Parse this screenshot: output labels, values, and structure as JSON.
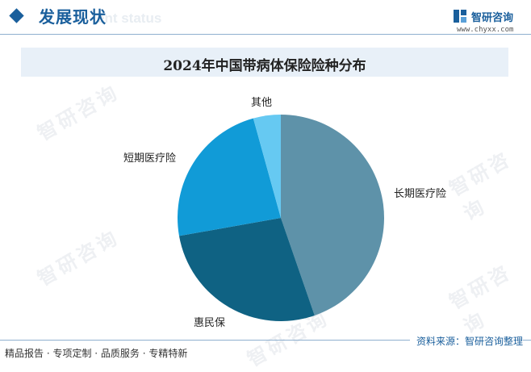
{
  "header": {
    "title": "发展现状",
    "subtitle_ghost": "ent status",
    "brand_name": "智研咨询",
    "brand_url": "www.chyxx.com"
  },
  "watermark_text": "智研咨询",
  "chart_data": {
    "type": "pie",
    "title": "2024年中国带病体保险险种分布",
    "start_angle_deg": 0,
    "direction": "clockwise",
    "slices": [
      {
        "label": "长期医疗险",
        "value": 44.7,
        "color": "#5e92a9"
      },
      {
        "label": "惠民保",
        "value": 27.5,
        "color": "#0f6283"
      },
      {
        "label": "短期医疗险",
        "value": 23.5,
        "color": "#119bd7"
      },
      {
        "label": "其他",
        "value": 4.3,
        "color": "#66c9f2"
      }
    ]
  },
  "footer": {
    "source": "资料来源：智研咨询整理",
    "tagline": "精品报告 · 专项定制 · 品质服务 · 专精特新"
  }
}
